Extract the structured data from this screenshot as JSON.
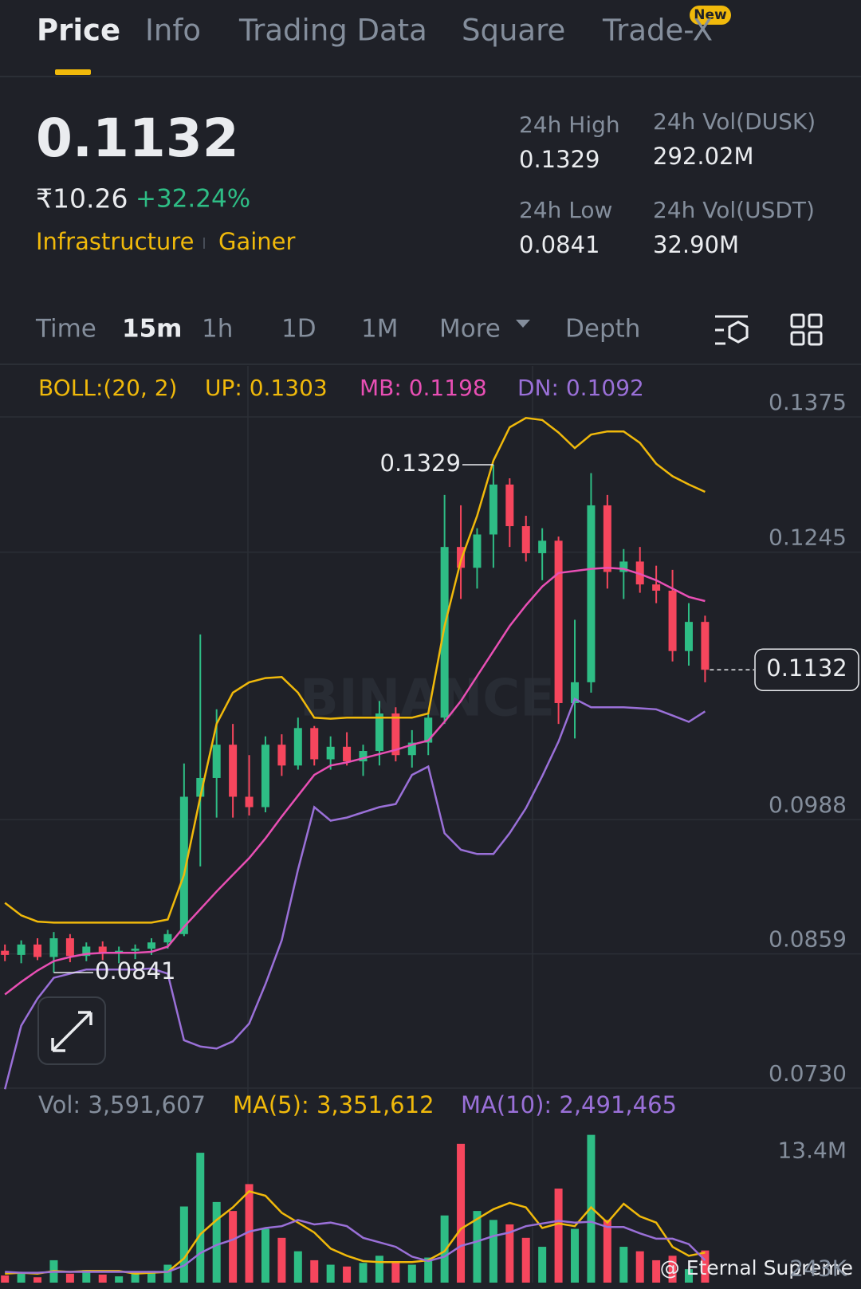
{
  "tabs": [
    "Price",
    "Info",
    "Trading Data",
    "Square",
    "Trade-X"
  ],
  "tab_badge": "New",
  "market": {
    "fiat_price": "₹10.26",
    "change": "+32.24%",
    "tags": [
      "Infrastructure",
      "Gainer"
    ],
    "stats": [
      {
        "label": "24h High",
        "value": "0.1329"
      },
      {
        "label": "24h Vol(DUSK)",
        "value": "292.02M"
      },
      {
        "label": "24h Low",
        "value": "0.0841"
      },
      {
        "label": "24h Vol(USDT)",
        "value": "32.90M"
      }
    ]
  },
  "intervals": [
    "Time",
    "15m",
    "1h",
    "1D",
    "1M",
    "More",
    "Depth"
  ],
  "watermarks": [
    "BINANCE",
    "@ Eternal Supreme"
  ],
  "chart_data": [
    {
      "type": "candlestick",
      "indicator": "BOLL:(20, 2)",
      "up_color": "#2ebd85",
      "down_color": "#f6465d",
      "open": [
        0.0862,
        0.0858,
        0.0868,
        0.0856,
        0.0874,
        0.0857,
        0.0866,
        0.086,
        0.0862,
        0.0864,
        0.087,
        0.0878,
        0.101,
        0.1028,
        0.106,
        0.101,
        0.1,
        0.106,
        0.104,
        0.1076,
        0.1046,
        0.1058,
        0.1044,
        0.1054,
        0.109,
        0.105,
        0.1062,
        0.1086,
        0.125,
        0.123,
        0.1262,
        0.131,
        0.127,
        0.1244,
        0.1256,
        0.11,
        0.112,
        0.129,
        0.1226,
        0.1236,
        0.1214,
        0.1208,
        0.115,
        0.1178
      ],
      "high": [
        0.0868,
        0.0872,
        0.0874,
        0.088,
        0.0878,
        0.087,
        0.0871,
        0.0866,
        0.0868,
        0.0874,
        0.0882,
        0.1042,
        0.1166,
        0.1094,
        0.108,
        0.105,
        0.1068,
        0.107,
        0.1086,
        0.1078,
        0.1068,
        0.1072,
        0.106,
        0.1102,
        0.1096,
        0.1074,
        0.109,
        0.13,
        0.129,
        0.1268,
        0.1329,
        0.1316,
        0.128,
        0.1268,
        0.126,
        0.118,
        0.1321,
        0.13,
        0.1248,
        0.125,
        0.1232,
        0.1228,
        0.1196,
        0.1184
      ],
      "low": [
        0.0852,
        0.085,
        0.0853,
        0.0841,
        0.0851,
        0.0852,
        0.0853,
        0.085,
        0.0854,
        0.0858,
        0.0864,
        0.0876,
        0.0943,
        0.099,
        0.099,
        0.0992,
        0.0995,
        0.103,
        0.1036,
        0.104,
        0.1036,
        0.104,
        0.103,
        0.104,
        0.1044,
        0.1038,
        0.105,
        0.108,
        0.12,
        0.121,
        0.123,
        0.125,
        0.1236,
        0.1218,
        0.108,
        0.1066,
        0.111,
        0.121,
        0.12,
        0.1206,
        0.1196,
        0.114,
        0.1136,
        0.112
      ],
      "close": [
        0.0858,
        0.0868,
        0.0856,
        0.0874,
        0.0857,
        0.0866,
        0.086,
        0.0862,
        0.0864,
        0.087,
        0.0878,
        0.101,
        0.1028,
        0.106,
        0.101,
        0.1,
        0.106,
        0.104,
        0.1076,
        0.1046,
        0.1058,
        0.1044,
        0.1054,
        0.109,
        0.105,
        0.1062,
        0.1086,
        0.125,
        0.123,
        0.1262,
        0.131,
        0.127,
        0.1244,
        0.1256,
        0.11,
        0.112,
        0.129,
        0.1226,
        0.1236,
        0.1214,
        0.1208,
        0.115,
        0.1178,
        0.1132
      ],
      "series": [
        {
          "name": "UP:",
          "color": "#f0b90b",
          "values": [
            0.0908,
            0.0896,
            0.089,
            0.0889,
            0.0889,
            0.0889,
            0.0889,
            0.0889,
            0.0889,
            0.0889,
            0.0892,
            0.0935,
            0.101,
            0.108,
            0.111,
            0.112,
            0.1124,
            0.1125,
            0.111,
            0.1086,
            0.1085,
            0.1086,
            0.1086,
            0.1086,
            0.1086,
            0.1086,
            0.109,
            0.1174,
            0.1237,
            0.128,
            0.1333,
            0.1365,
            0.1374,
            0.1372,
            0.136,
            0.1345,
            0.1358,
            0.1361,
            0.1361,
            0.135,
            0.133,
            0.1318,
            0.131,
            0.1303
          ]
        },
        {
          "name": "MB:",
          "color": "#e84fb4",
          "values": [
            0.082,
            0.0832,
            0.0843,
            0.0852,
            0.0856,
            0.0859,
            0.086,
            0.086,
            0.086,
            0.0861,
            0.0866,
            0.0885,
            0.0902,
            0.0919,
            0.0935,
            0.0951,
            0.097,
            0.0991,
            0.1011,
            0.1031,
            0.104,
            0.1043,
            0.1047,
            0.1051,
            0.1055,
            0.106,
            0.1064,
            0.1082,
            0.1102,
            0.1126,
            0.115,
            0.1174,
            0.1194,
            0.1212,
            0.1225,
            0.1227,
            0.1229,
            0.123,
            0.1229,
            0.1224,
            0.1218,
            0.121,
            0.1202,
            0.1198
          ]
        },
        {
          "name": "DN:",
          "color": "#9a70d8",
          "values": [
            0.0729,
            0.079,
            0.0816,
            0.0836,
            0.084,
            0.0844,
            0.0844,
            0.0844,
            0.0844,
            0.0845,
            0.084,
            0.0776,
            0.077,
            0.0768,
            0.0775,
            0.0792,
            0.083,
            0.0872,
            0.094,
            0.1,
            0.0987,
            0.099,
            0.0995,
            0.1,
            0.1003,
            0.1031,
            0.1039,
            0.0975,
            0.0959,
            0.0955,
            0.0955,
            0.0975,
            0.0999,
            0.103,
            0.1063,
            0.1104,
            0.1096,
            0.1096,
            0.1096,
            0.1095,
            0.1094,
            0.1088,
            0.1082,
            0.1092
          ]
        }
      ],
      "ylim": [
        0.073,
        0.1424
      ],
      "yticks": [
        0.1375,
        0.1245,
        0.0988,
        0.0859,
        {
          "value": 0.073,
          "label": "0.0730"
        }
      ],
      "grid": true
    },
    {
      "type": "bar",
      "title": "Vol:",
      "values": [
        800000,
        1200000,
        600000,
        2500000,
        1000000,
        1400000,
        900000,
        700000,
        1000000,
        1300000,
        2000000,
        8500000,
        14500000,
        9000000,
        8000000,
        11000000,
        6000000,
        5000000,
        3500000,
        2500000,
        2000000,
        1800000,
        2200000,
        3000000,
        2400000,
        2000000,
        2800000,
        7500000,
        15500000,
        8000000,
        7000000,
        6500000,
        5000000,
        4000000,
        10500000,
        6000000,
        16500000,
        7000000,
        4000000,
        3500000,
        2500000,
        3000000,
        1500000,
        3591607
      ],
      "value_labels": [
        null,
        null,
        null,
        null,
        null,
        null,
        null,
        null,
        null,
        null,
        null,
        null,
        null,
        null,
        null,
        null,
        null,
        null,
        null,
        null,
        null,
        null,
        null,
        null,
        null,
        null,
        null,
        null,
        null,
        null,
        null,
        null,
        null,
        null,
        null,
        null,
        null,
        null,
        null,
        null,
        null,
        null,
        null,
        "3,591,607"
      ],
      "series": [
        {
          "name": "MA(5):",
          "color": "#f0b90b",
          "values": [
            1000000,
            1100000,
            1000000,
            1300000,
            1200000,
            1300000,
            1300000,
            1300000,
            1000000,
            1100000,
            1200000,
            2700000,
            5400000,
            7000000,
            8400000,
            10200000,
            9700000,
            7800000,
            6700000,
            5600000,
            3800000,
            3000000,
            2400000,
            2300000,
            2300000,
            2300000,
            2500000,
            3500000,
            6000000,
            7100000,
            8200000,
            8900000,
            8400000,
            6100000,
            6600000,
            6300000,
            8400000,
            6700000,
            8800000,
            7400000,
            6700000,
            4000000,
            3000000,
            3351612
          ],
          "value_labels": [
            null,
            null,
            null,
            null,
            null,
            null,
            null,
            null,
            null,
            null,
            null,
            null,
            null,
            null,
            null,
            null,
            null,
            null,
            null,
            null,
            null,
            null,
            null,
            null,
            null,
            null,
            null,
            null,
            null,
            null,
            null,
            null,
            null,
            null,
            null,
            null,
            null,
            null,
            null,
            null,
            null,
            null,
            null,
            "3,351,612"
          ]
        },
        {
          "name": "MA(10):",
          "color": "#9a70d8",
          "values": [
            1200000,
            1100000,
            1100000,
            1200000,
            1200000,
            1200000,
            1200000,
            1200000,
            1200000,
            1200000,
            1200000,
            1900000,
            3300000,
            4200000,
            4800000,
            5700000,
            6100000,
            6300000,
            7000000,
            6500000,
            6700000,
            6300000,
            5000000,
            4500000,
            4000000,
            2900000,
            2400000,
            2900000,
            4100000,
            4600000,
            5200000,
            5600000,
            6300000,
            6600000,
            6900000,
            6700000,
            6800000,
            6200000,
            6200000,
            5500000,
            4900000,
            4900000,
            4300000,
            2491465
          ],
          "value_labels": [
            null,
            null,
            null,
            null,
            null,
            null,
            null,
            null,
            null,
            null,
            null,
            null,
            null,
            null,
            null,
            null,
            null,
            null,
            null,
            null,
            null,
            null,
            null,
            null,
            null,
            null,
            null,
            null,
            null,
            null,
            null,
            null,
            null,
            null,
            null,
            null,
            null,
            null,
            null,
            null,
            null,
            null,
            null,
            "2,491,465"
          ]
        }
      ],
      "ylim": [
        0,
        17000000
      ],
      "yticks": [
        {
          "value": 13400000,
          "label": "13.4M"
        },
        {
          "value": 243000,
          "label": "243K"
        }
      ]
    }
  ]
}
